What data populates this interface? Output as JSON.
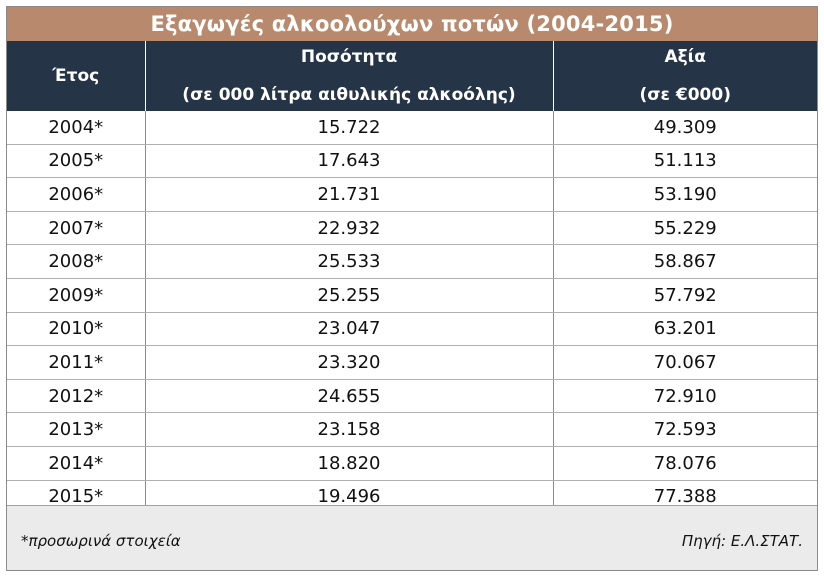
{
  "title": "Εξαγωγές αλκοολούχων ποτών (2004-2015)",
  "headers": {
    "year": "Έτος",
    "quantity_line1": "Ποσότητα",
    "quantity_line2": "(σε 000 λίτρα αιθυλικής αλκοόλης)",
    "value_line1": "Αξία",
    "value_line2": "(σε €000)"
  },
  "rows": [
    {
      "year": "2004*",
      "quantity": "15.722",
      "value": "49.309"
    },
    {
      "year": "2005*",
      "quantity": "17.643",
      "value": "51.113"
    },
    {
      "year": "2006*",
      "quantity": "21.731",
      "value": "53.190"
    },
    {
      "year": "2007*",
      "quantity": "22.932",
      "value": "55.229"
    },
    {
      "year": "2008*",
      "quantity": "25.533",
      "value": "58.867"
    },
    {
      "year": "2009*",
      "quantity": "25.255",
      "value": "57.792"
    },
    {
      "year": "2010*",
      "quantity": "23.047",
      "value": "63.201"
    },
    {
      "year": "2011*",
      "quantity": "23.320",
      "value": "70.067"
    },
    {
      "year": "2012*",
      "quantity": "24.655",
      "value": "72.910"
    },
    {
      "year": "2013*",
      "quantity": "23.158",
      "value": "72.593"
    },
    {
      "year": "2014*",
      "quantity": "18.820",
      "value": "78.076"
    },
    {
      "year": "2015*",
      "quantity": "19.496",
      "value": "77.388"
    }
  ],
  "footer": {
    "note": "*προσωρινά στοιχεία",
    "source": "Πηγή: Ε.Λ.ΣΤΑΤ."
  },
  "colors": {
    "title_bg": "#b8896c",
    "header_bg": "#253447",
    "footer_bg": "#ebebeb"
  }
}
